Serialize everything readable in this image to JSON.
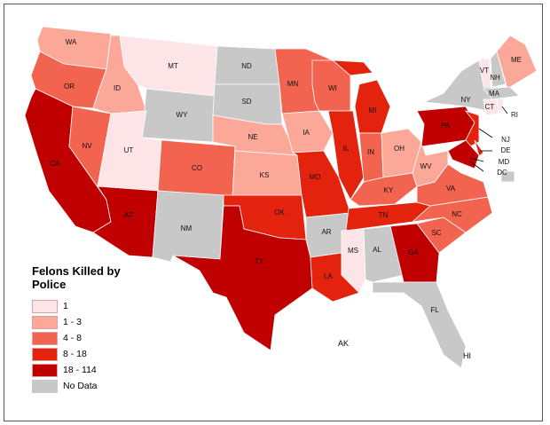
{
  "legend": {
    "title": "Felons Killed by Police",
    "classes": [
      {
        "label": "1",
        "color": "#fde4e6"
      },
      {
        "label": "1 - 3",
        "color": "#fba899"
      },
      {
        "label": "4 - 8",
        "color": "#f26350"
      },
      {
        "label": "8 - 18",
        "color": "#e3230e"
      },
      {
        "label": "18 - 114",
        "color": "#c00000"
      },
      {
        "label": "No Data",
        "color": "#c8c8c8"
      }
    ]
  },
  "states": [
    {
      "code": "WA",
      "class": 1
    },
    {
      "code": "OR",
      "class": 2
    },
    {
      "code": "CA",
      "class": 4
    },
    {
      "code": "ID",
      "class": 1
    },
    {
      "code": "NV",
      "class": 2
    },
    {
      "code": "MT",
      "class": 0
    },
    {
      "code": "WY",
      "class": 5
    },
    {
      "code": "UT",
      "class": 0
    },
    {
      "code": "AZ",
      "class": 4
    },
    {
      "code": "CO",
      "class": 2
    },
    {
      "code": "NM",
      "class": 5
    },
    {
      "code": "ND",
      "class": 5
    },
    {
      "code": "SD",
      "class": 5
    },
    {
      "code": "NE",
      "class": 1
    },
    {
      "code": "KS",
      "class": 1
    },
    {
      "code": "OK",
      "class": 3
    },
    {
      "code": "TX",
      "class": 4
    },
    {
      "code": "MN",
      "class": 2
    },
    {
      "code": "IA",
      "class": 1
    },
    {
      "code": "MO",
      "class": 3
    },
    {
      "code": "AR",
      "class": 5
    },
    {
      "code": "LA",
      "class": 3
    },
    {
      "code": "WI",
      "class": 2
    },
    {
      "code": "IL",
      "class": 3
    },
    {
      "code": "MI",
      "class": 3
    },
    {
      "code": "IN",
      "class": 2
    },
    {
      "code": "OH",
      "class": 1
    },
    {
      "code": "KY",
      "class": 2
    },
    {
      "code": "TN",
      "class": 3
    },
    {
      "code": "MS",
      "class": 0
    },
    {
      "code": "AL",
      "class": 5
    },
    {
      "code": "GA",
      "class": 4
    },
    {
      "code": "FL",
      "class": 5
    },
    {
      "code": "SC",
      "class": 2
    },
    {
      "code": "NC",
      "class": 2
    },
    {
      "code": "VA",
      "class": 2
    },
    {
      "code": "WV",
      "class": 1
    },
    {
      "code": "PA",
      "class": 4
    },
    {
      "code": "NY",
      "class": 5
    },
    {
      "code": "VT",
      "class": 0
    },
    {
      "code": "NH",
      "class": 5
    },
    {
      "code": "ME",
      "class": 1
    },
    {
      "code": "MA",
      "class": 5
    },
    {
      "code": "CT",
      "class": 0
    },
    {
      "code": "RI",
      "class": 0
    },
    {
      "code": "NJ",
      "class": 3
    },
    {
      "code": "DE",
      "class": 3
    },
    {
      "code": "MD",
      "class": 4
    },
    {
      "code": "DC",
      "class": 5
    }
  ],
  "other_labels": {
    "ak": "AK",
    "hi": "HI"
  }
}
